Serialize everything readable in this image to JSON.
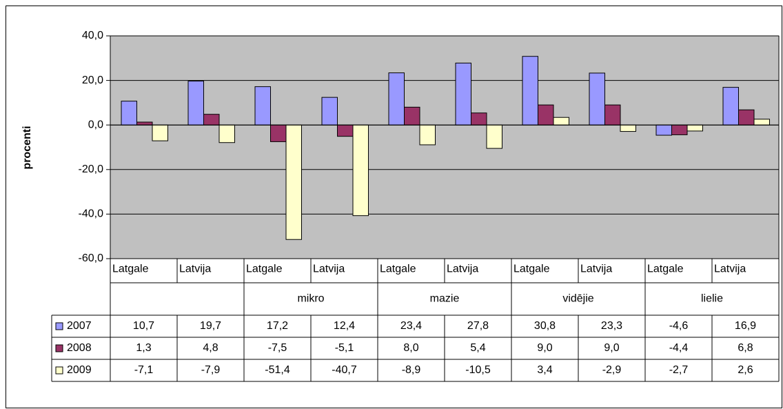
{
  "chart_data": {
    "type": "bar",
    "y_label": "procenti",
    "categories": [
      "Latgale",
      "Latvija",
      "Latgale",
      "Latvija",
      "Latgale",
      "Latvija",
      "Latgale",
      "Latvija",
      "Latgale",
      "Latvija"
    ],
    "groups": [
      null,
      "mikro",
      "mazie",
      "vidējie",
      "lielie"
    ],
    "series": [
      {
        "name": "2007",
        "color": "#9999ff",
        "values": [
          10.7,
          19.7,
          17.2,
          12.4,
          23.4,
          27.8,
          30.8,
          23.3,
          -4.6,
          16.9
        ],
        "value_labels": [
          "10,7",
          "19,7",
          "17,2",
          "12,4",
          "23,4",
          "27,8",
          "30,8",
          "23,3",
          "-4,6",
          "16,9"
        ]
      },
      {
        "name": "2008",
        "color": "#993366",
        "values": [
          1.3,
          4.8,
          -7.5,
          -5.1,
          8.0,
          5.4,
          9.0,
          9.0,
          -4.4,
          6.8
        ],
        "value_labels": [
          "1,3",
          "4,8",
          "-7,5",
          "-5,1",
          "8,0",
          "5,4",
          "9,0",
          "9,0",
          "-4,4",
          "6,8"
        ]
      },
      {
        "name": "2009",
        "color": "#ffffcc",
        "values": [
          -7.1,
          -7.9,
          -51.4,
          -40.7,
          -8.9,
          -10.5,
          3.4,
          -2.9,
          -2.7,
          2.6
        ],
        "value_labels": [
          "-7,1",
          "-7,9",
          "-51,4",
          "-40,7",
          "-8,9",
          "-10,5",
          "3,4",
          "-2,9",
          "-2,7",
          "2,6"
        ]
      }
    ],
    "ylim": [
      -60,
      40
    ],
    "yticks": [
      {
        "value": -60,
        "label": "-60,0"
      },
      {
        "value": -40,
        "label": "-40,0"
      },
      {
        "value": -20,
        "label": "-20,0"
      },
      {
        "value": 0,
        "label": "0,0"
      },
      {
        "value": 20,
        "label": "20,0"
      },
      {
        "value": 40,
        "label": "40,0"
      }
    ],
    "grid": true,
    "plot_background": "#c0c0c0"
  }
}
